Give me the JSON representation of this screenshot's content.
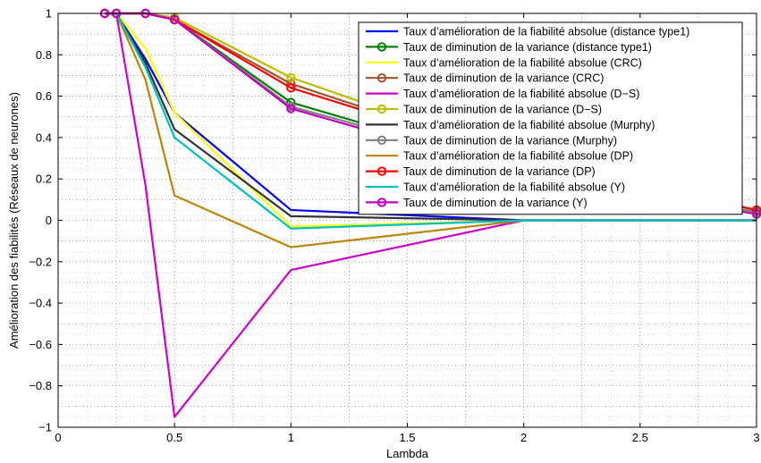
{
  "chart_data": {
    "type": "line",
    "title": "",
    "xlabel": "Lambda",
    "ylabel": "Amélioration des fiabilités (Réseaux de neurones)",
    "xlim": [
      0,
      3
    ],
    "ylim": [
      -1,
      1
    ],
    "xticks": [
      "0",
      "0.5",
      "1",
      "1.5",
      "2",
      "2.5",
      "3"
    ],
    "xtick_values": [
      0,
      0.5,
      1,
      1.5,
      2,
      2.5,
      3
    ],
    "yticks": [
      "−1",
      "−0.8",
      "−0.6",
      "−0.4",
      "−0.2",
      "0",
      "0.2",
      "0.4",
      "0.6",
      "0.8",
      "1"
    ],
    "ytick_values": [
      -1,
      -0.8,
      -0.6,
      -0.4,
      -0.2,
      0,
      0.2,
      0.4,
      0.6,
      0.8,
      1
    ],
    "grid": true,
    "legend_position": "top-right",
    "x": [
      0.2,
      0.25,
      0.375,
      0.5,
      1,
      2,
      3
    ],
    "series": [
      {
        "name": "Taux d’amélioration de la fiabilité absolue (distance type1)",
        "color": "#0000ff",
        "marker": false,
        "values": [
          1,
          1,
          0.78,
          0.52,
          0.05,
          0.0,
          0.0
        ]
      },
      {
        "name": "Taux de diminution de la variance (distance type1)",
        "color": "#008000",
        "marker": true,
        "values": [
          1,
          1,
          1,
          0.97,
          0.57,
          0.24,
          0.04
        ]
      },
      {
        "name": "Taux d’amélioration de la fiabilité absolue (CRC)",
        "color": "#ffff00",
        "marker": false,
        "values": [
          1,
          1,
          0.83,
          0.52,
          -0.03,
          0.0,
          0.0
        ]
      },
      {
        "name": "Taux de diminution de la variance (CRC)",
        "color": "#a0522d",
        "marker": true,
        "values": [
          1,
          1,
          1,
          0.97,
          0.66,
          0.29,
          0.05
        ]
      },
      {
        "name": "Taux d’amélioration de la fiabilité absolue (D−S)",
        "color": "#cc00cc",
        "marker": false,
        "values": [
          1,
          1,
          0.17,
          -0.95,
          -0.24,
          0.0,
          0.0
        ]
      },
      {
        "name": "Taux de diminution de la variance (D−S)",
        "color": "#bdbd00",
        "marker": true,
        "values": [
          1,
          1,
          1,
          0.98,
          0.69,
          0.3,
          0.05
        ]
      },
      {
        "name": "Taux d’amélioration de la fiabilité absolue (Murphy)",
        "color": "#333333",
        "marker": false,
        "values": [
          1,
          1,
          0.76,
          0.44,
          0.02,
          0.0,
          0.0
        ]
      },
      {
        "name": "Taux de diminution de la variance (Murphy)",
        "color": "#808080",
        "marker": true,
        "values": [
          1,
          1,
          1,
          0.97,
          0.55,
          0.24,
          0.04
        ]
      },
      {
        "name": "Taux d’amélioration de la fiabilité absolue (DP)",
        "color": "#b8860b",
        "marker": false,
        "values": [
          1,
          1,
          0.68,
          0.12,
          -0.13,
          0.0,
          0.0
        ]
      },
      {
        "name": "Taux de diminution de la variance (DP)",
        "color": "#ff0000",
        "marker": true,
        "values": [
          1,
          1,
          1,
          0.97,
          0.64,
          0.29,
          0.05
        ]
      },
      {
        "name": "Taux d’amélioration de la fiabilité absolue (Y)",
        "color": "#00bfbf",
        "marker": false,
        "values": [
          1,
          1,
          0.74,
          0.4,
          -0.04,
          0.0,
          0.0
        ]
      },
      {
        "name": "Taux de diminution de la variance (Y)",
        "color": "#bf00bf",
        "marker": true,
        "values": [
          1,
          1,
          1,
          0.97,
          0.54,
          0.22,
          0.03
        ]
      }
    ]
  }
}
